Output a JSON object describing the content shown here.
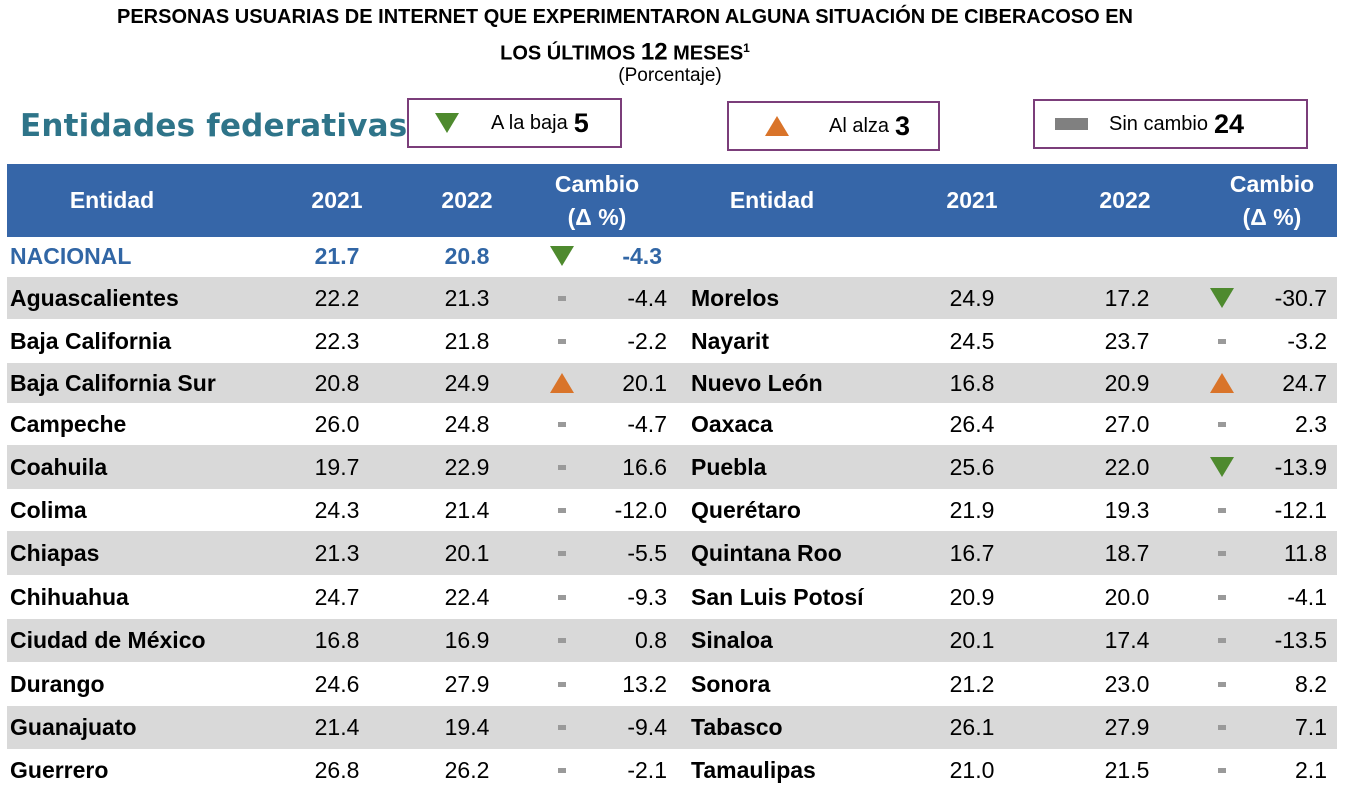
{
  "title": {
    "line1": "Personas usuarias de internet que experimentaron alguna situación de ciberacoso en",
    "line2_a": "los últimos",
    "line2_num": "12",
    "line2_b": "meses",
    "sup": "1",
    "subtitle": "(Porcentaje)"
  },
  "section_label": "Entidades federativas",
  "legend": {
    "down_label": "A la baja",
    "down_count": "5",
    "up_label": "Al alza",
    "up_count": "3",
    "same_label": "Sin cambio",
    "same_count": "24"
  },
  "colors": {
    "header_bg": "#3666A8",
    "shade": "#D9D9D9",
    "down": "#4E8A2E",
    "up": "#D9742A",
    "nacional": "#3166A5"
  },
  "headers": {
    "entidad": "Entidad",
    "y1": "2021",
    "y2": "2022",
    "cambio1": "Cambio",
    "cambio2": "(Δ %)"
  },
  "nacional": {
    "name": "NACIONAL",
    "y2021": "21.7",
    "y2022": "20.8",
    "trend": "down",
    "change": "-4.3"
  },
  "rows": [
    {
      "left": {
        "name": "Aguascalientes",
        "y2021": "22.2",
        "y2022": "21.3",
        "trend": "same",
        "change": "-4.4"
      },
      "right": {
        "name": "Morelos",
        "y2021": "24.9",
        "y2022": "17.2",
        "trend": "down",
        "change": "-30.7"
      }
    },
    {
      "left": {
        "name": "Baja California",
        "y2021": "22.3",
        "y2022": "21.8",
        "trend": "same",
        "change": "-2.2"
      },
      "right": {
        "name": "Nayarit",
        "y2021": "24.5",
        "y2022": "23.7",
        "trend": "same",
        "change": "-3.2"
      }
    },
    {
      "left": {
        "name": "Baja California Sur",
        "y2021": "20.8",
        "y2022": "24.9",
        "trend": "up",
        "change": "20.1"
      },
      "right": {
        "name": "Nuevo León",
        "y2021": "16.8",
        "y2022": "20.9",
        "trend": "up",
        "change": "24.7"
      }
    },
    {
      "left": {
        "name": "Campeche",
        "y2021": "26.0",
        "y2022": "24.8",
        "trend": "same",
        "change": "-4.7"
      },
      "right": {
        "name": "Oaxaca",
        "y2021": "26.4",
        "y2022": "27.0",
        "trend": "same",
        "change": "2.3"
      }
    },
    {
      "left": {
        "name": "Coahuila",
        "y2021": "19.7",
        "y2022": "22.9",
        "trend": "same",
        "change": "16.6"
      },
      "right": {
        "name": "Puebla",
        "y2021": "25.6",
        "y2022": "22.0",
        "trend": "down",
        "change": "-13.9"
      }
    },
    {
      "left": {
        "name": "Colima",
        "y2021": "24.3",
        "y2022": "21.4",
        "trend": "same",
        "change": "-12.0"
      },
      "right": {
        "name": "Querétaro",
        "y2021": "21.9",
        "y2022": "19.3",
        "trend": "same",
        "change": "-12.1"
      }
    },
    {
      "left": {
        "name": "Chiapas",
        "y2021": "21.3",
        "y2022": "20.1",
        "trend": "same",
        "change": "-5.5"
      },
      "right": {
        "name": "Quintana Roo",
        "y2021": "16.7",
        "y2022": "18.7",
        "trend": "same",
        "change": "11.8"
      }
    },
    {
      "left": {
        "name": "Chihuahua",
        "y2021": "24.7",
        "y2022": "22.4",
        "trend": "same",
        "change": "-9.3"
      },
      "right": {
        "name": "San Luis Potosí",
        "y2021": "20.9",
        "y2022": "20.0",
        "trend": "same",
        "change": "-4.1"
      }
    },
    {
      "left": {
        "name": "Ciudad de México",
        "y2021": "16.8",
        "y2022": "16.9",
        "trend": "same",
        "change": "0.8"
      },
      "right": {
        "name": "Sinaloa",
        "y2021": "20.1",
        "y2022": "17.4",
        "trend": "same",
        "change": "-13.5"
      }
    },
    {
      "left": {
        "name": "Durango",
        "y2021": "24.6",
        "y2022": "27.9",
        "trend": "same",
        "change": "13.2"
      },
      "right": {
        "name": "Sonora",
        "y2021": "21.2",
        "y2022": "23.0",
        "trend": "same",
        "change": "8.2"
      }
    },
    {
      "left": {
        "name": "Guanajuato",
        "y2021": "21.4",
        "y2022": "19.4",
        "trend": "same",
        "change": "-9.4"
      },
      "right": {
        "name": "Tabasco",
        "y2021": "26.1",
        "y2022": "27.9",
        "trend": "same",
        "change": "7.1"
      }
    },
    {
      "left": {
        "name": "Guerrero",
        "y2021": "26.8",
        "y2022": "26.2",
        "trend": "same",
        "change": "-2.1"
      },
      "right": {
        "name": "Tamaulipas",
        "y2021": "21.0",
        "y2022": "21.5",
        "trend": "same",
        "change": "2.1"
      }
    }
  ]
}
